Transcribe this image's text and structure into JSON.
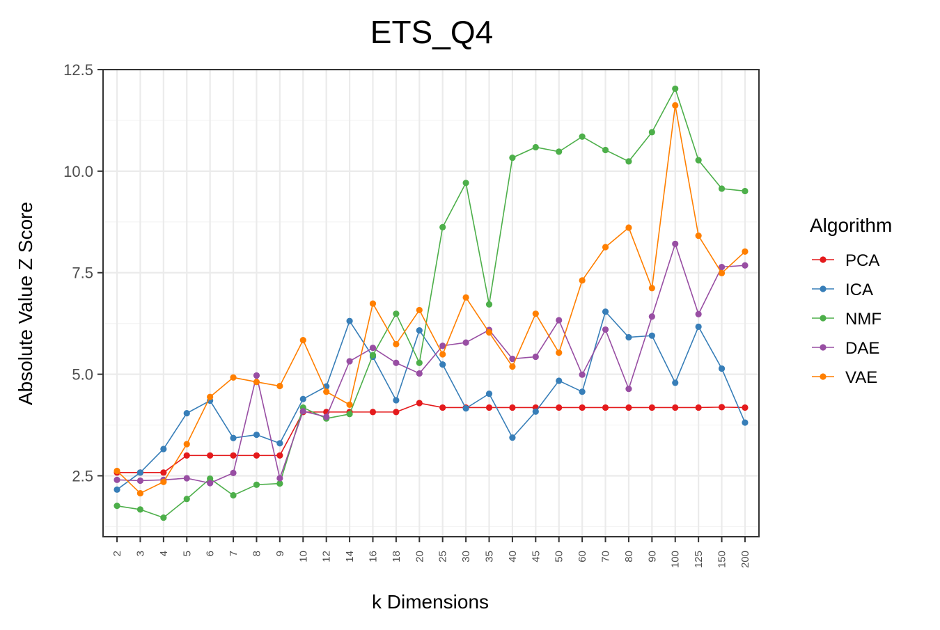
{
  "chart_data": {
    "type": "line",
    "title": "ETS_Q4",
    "xlabel": "k Dimensions",
    "ylabel": "Absolute Value Z Score",
    "categories": [
      "2",
      "3",
      "4",
      "5",
      "6",
      "7",
      "8",
      "9",
      "10",
      "12",
      "14",
      "16",
      "18",
      "20",
      "25",
      "30",
      "35",
      "40",
      "45",
      "50",
      "60",
      "70",
      "80",
      "90",
      "100",
      "125",
      "150",
      "200"
    ],
    "ylim": [
      1.0,
      12.5
    ],
    "yticks": [
      2.5,
      5.0,
      7.5,
      10.0,
      12.5
    ],
    "ytick_labels": [
      "2.5",
      "5.0",
      "7.5",
      "10.0",
      "12.5"
    ],
    "grid": true,
    "legend": {
      "title": "Algorithm",
      "position": "right"
    },
    "series": [
      {
        "name": "PCA",
        "color": "#E41A1C",
        "values": [
          2.58,
          2.58,
          2.58,
          3.0,
          3.0,
          3.0,
          3.0,
          3.0,
          4.07,
          4.07,
          4.07,
          4.07,
          4.07,
          4.29,
          4.18,
          4.18,
          4.18,
          4.18,
          4.18,
          4.18,
          4.18,
          4.18,
          4.18,
          4.18,
          4.18,
          4.18,
          4.19,
          4.18
        ]
      },
      {
        "name": "ICA",
        "color": "#377EB8",
        "values": [
          2.16,
          2.58,
          3.16,
          4.04,
          4.35,
          3.43,
          3.51,
          3.3,
          4.39,
          4.7,
          6.31,
          5.43,
          4.36,
          6.08,
          5.24,
          4.16,
          4.52,
          3.44,
          4.08,
          4.84,
          4.57,
          6.54,
          5.91,
          5.95,
          4.79,
          6.17,
          5.14,
          3.81
        ]
      },
      {
        "name": "NMF",
        "color": "#4DAF4A",
        "values": [
          1.76,
          1.67,
          1.47,
          1.93,
          2.43,
          2.02,
          2.28,
          2.31,
          4.18,
          3.91,
          4.02,
          5.47,
          6.49,
          5.28,
          8.62,
          9.71,
          6.72,
          10.33,
          10.59,
          10.48,
          10.85,
          10.52,
          10.24,
          10.96,
          12.03,
          10.27,
          9.57,
          9.51
        ]
      },
      {
        "name": "DAE",
        "color": "#984EA3",
        "values": [
          2.4,
          2.38,
          2.4,
          2.44,
          2.32,
          2.57,
          4.97,
          2.44,
          4.09,
          3.95,
          5.32,
          5.65,
          5.28,
          5.02,
          5.7,
          5.78,
          6.09,
          5.38,
          5.43,
          6.33,
          4.99,
          6.1,
          4.64,
          6.42,
          8.21,
          6.48,
          7.64,
          7.68
        ]
      },
      {
        "name": "VAE",
        "color": "#FF7F00",
        "values": [
          2.62,
          2.07,
          2.35,
          3.28,
          4.44,
          4.92,
          4.81,
          4.71,
          5.84,
          4.57,
          4.25,
          6.74,
          5.74,
          6.58,
          5.49,
          6.89,
          6.03,
          5.19,
          6.49,
          5.53,
          7.31,
          8.13,
          8.61,
          7.12,
          11.62,
          8.41,
          7.49,
          8.02
        ]
      }
    ]
  }
}
